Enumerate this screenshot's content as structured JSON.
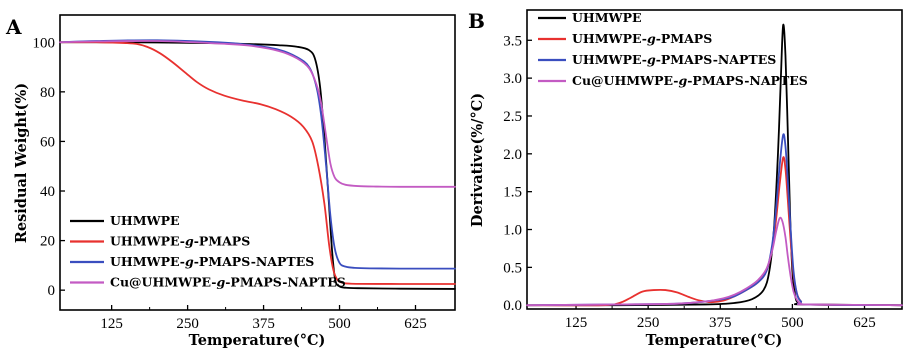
{
  "chart_data": [
    {
      "type": "line",
      "panel": "A",
      "xlabel": "Temperature(°C)",
      "ylabel": "Residual Weight(%)",
      "xlim": [
        40,
        690
      ],
      "ylim": [
        -8,
        111
      ],
      "xticks": [
        125,
        250,
        375,
        500,
        625
      ],
      "yticks": [
        0,
        20,
        40,
        60,
        80,
        100
      ],
      "legend": "bottom-left",
      "series": [
        {
          "name": "UHMWPE",
          "color": "#000000",
          "x": [
            40,
            100,
            200,
            300,
            350,
            400,
            430,
            450,
            460,
            468,
            475,
            482,
            488,
            493,
            500,
            510,
            530,
            600,
            690
          ],
          "y": [
            100,
            100,
            99.9,
            99.6,
            99.3,
            98.8,
            98.2,
            96.8,
            93,
            82,
            62,
            37,
            15,
            4,
            1.5,
            1,
            0.8,
            0.6,
            0.5
          ]
        },
        {
          "name": "UHMWPE-g-PMAPS",
          "color": "#e8312f",
          "x": [
            40,
            100,
            160,
            185,
            205,
            225,
            245,
            265,
            285,
            310,
            340,
            370,
            395,
            420,
            440,
            455,
            465,
            475,
            483,
            490,
            497,
            505,
            520,
            600,
            690
          ],
          "y": [
            100,
            100,
            99.5,
            98,
            95.5,
            92,
            88,
            84,
            81,
            78.5,
            76.5,
            75,
            73,
            70,
            66,
            60,
            50,
            35,
            18,
            8,
            4,
            3,
            2.6,
            2.5,
            2.5
          ]
        },
        {
          "name": "UHMWPE-g-PMAPS-NAPTES",
          "color": "#3a4ebf",
          "x": [
            40,
            100,
            200,
            300,
            350,
            400,
            430,
            450,
            462,
            470,
            478,
            485,
            492,
            500,
            510,
            525,
            550,
            600,
            690
          ],
          "y": [
            100,
            100.5,
            100.8,
            100,
            99,
            97,
            94,
            90,
            82,
            70,
            50,
            30,
            17,
            11,
            9.5,
            9,
            8.8,
            8.7,
            8.7
          ]
        },
        {
          "name": "Cu@UHMWPE-g-PMAPS-NAPTES",
          "color": "#c35bc3",
          "x": [
            40,
            100,
            200,
            300,
            350,
            400,
            430,
            450,
            462,
            470,
            478,
            485,
            492,
            500,
            510,
            530,
            560,
            600,
            690
          ],
          "y": [
            100,
            100.3,
            100.5,
            99.5,
            98.7,
            96.5,
            93.5,
            89.5,
            83,
            75,
            62,
            51,
            45.5,
            43.5,
            42.5,
            42,
            41.8,
            41.7,
            41.7
          ]
        }
      ]
    },
    {
      "type": "line",
      "panel": "B",
      "xlabel": "Temperature(°C)",
      "ylabel": "Derivative(%/°C)",
      "xlim": [
        40,
        690
      ],
      "ylim": [
        -0.05,
        3.9
      ],
      "xticks": [
        125,
        250,
        375,
        500,
        625
      ],
      "yticks": [
        0.0,
        0.5,
        1.0,
        1.5,
        2.0,
        2.5,
        3.0,
        3.5
      ],
      "legend": "top-left",
      "series": [
        {
          "name": "UHMWPE",
          "color": "#000000",
          "x": [
            40,
            200,
            350,
            400,
            430,
            450,
            460,
            468,
            475,
            480,
            484,
            488,
            492,
            496,
            500,
            505,
            510,
            520,
            690
          ],
          "y": [
            0,
            0,
            0.01,
            0.03,
            0.08,
            0.2,
            0.45,
            1.0,
            2.0,
            3.0,
            3.7,
            3.3,
            2.3,
            1.2,
            0.45,
            0.12,
            0.03,
            0.01,
            0
          ]
        },
        {
          "name": "UHMWPE-g-PMAPS",
          "color": "#e8312f",
          "x": [
            40,
            170,
            200,
            220,
            240,
            260,
            280,
            300,
            320,
            340,
            360,
            380,
            400,
            420,
            440,
            455,
            465,
            472,
            478,
            484,
            488,
            492,
            497,
            502,
            508,
            515,
            525,
            690
          ],
          "y": [
            0,
            0,
            0.03,
            0.1,
            0.18,
            0.2,
            0.2,
            0.17,
            0.11,
            0.06,
            0.04,
            0.06,
            0.12,
            0.2,
            0.3,
            0.45,
            0.75,
            1.15,
            1.6,
            1.95,
            1.8,
            1.4,
            0.85,
            0.4,
            0.15,
            0.05,
            0.01,
            0
          ]
        },
        {
          "name": "UHMWPE-g-PMAPS-NAPTES",
          "color": "#3a4ebf",
          "x": [
            40,
            200,
            300,
            350,
            380,
            400,
            420,
            440,
            455,
            465,
            472,
            478,
            484,
            488,
            492,
            497,
            502,
            508,
            515,
            525,
            690
          ],
          "y": [
            0,
            0.01,
            0.02,
            0.05,
            0.08,
            0.12,
            0.2,
            0.3,
            0.45,
            0.8,
            1.3,
            1.85,
            2.25,
            2.1,
            1.65,
            1.0,
            0.45,
            0.15,
            0.05,
            0.01,
            0
          ]
        },
        {
          "name": "Cu@UHMWPE-g-PMAPS-NAPTES",
          "color": "#c35bc3",
          "x": [
            40,
            200,
            300,
            350,
            380,
            400,
            420,
            440,
            455,
            465,
            472,
            478,
            483,
            488,
            492,
            497,
            502,
            508,
            515,
            525,
            690
          ],
          "y": [
            0,
            0.01,
            0.02,
            0.05,
            0.09,
            0.14,
            0.22,
            0.33,
            0.48,
            0.72,
            0.98,
            1.15,
            1.1,
            0.9,
            0.65,
            0.38,
            0.18,
            0.07,
            0.02,
            0.01,
            0
          ]
        }
      ]
    }
  ]
}
